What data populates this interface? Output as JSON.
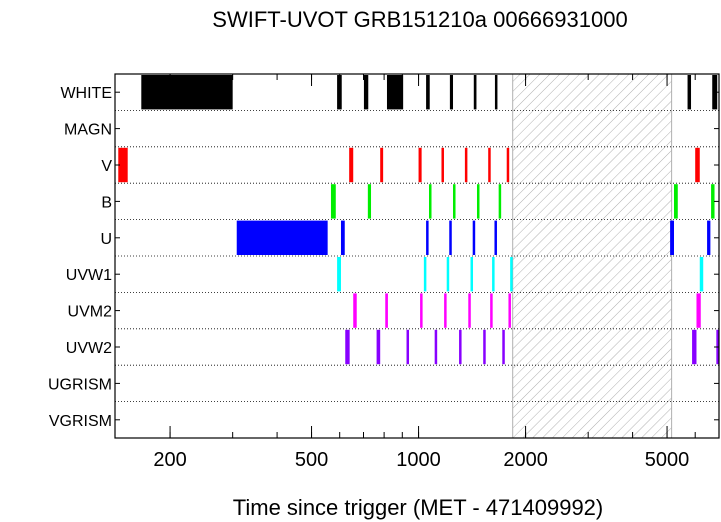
{
  "chart_data": {
    "type": "timeline",
    "title": "SWIFT-UVOT GRB151210a 00666931000",
    "xlabel": "Time since trigger (MET - 471409992)",
    "xscale": "log",
    "xlim": [
      140,
      7000
    ],
    "xticks": [
      {
        "value": 200,
        "label": "200"
      },
      {
        "value": 500,
        "label": "500"
      },
      {
        "value": 1000,
        "label": "1000"
      },
      {
        "value": 2000,
        "label": "2000"
      },
      {
        "value": 5000,
        "label": "5000"
      }
    ],
    "gap": {
      "start": 1840,
      "end": 5150
    },
    "filters": [
      {
        "name": "WHITE",
        "color": "#000000",
        "exposures": [
          [
            166,
            300
          ],
          [
            590,
            608
          ],
          [
            702,
            722
          ],
          [
            815,
            905
          ],
          [
            1050,
            1075
          ],
          [
            1225,
            1250
          ],
          [
            1430,
            1455
          ],
          [
            1640,
            1665
          ],
          [
            5710,
            5840
          ],
          [
            6700,
            6920
          ]
        ]
      },
      {
        "name": "MAGN",
        "color": "#000000",
        "exposures": []
      },
      {
        "name": "V",
        "color": "#ff0000",
        "exposures": [
          [
            143,
            152
          ],
          [
            638,
            655
          ],
          [
            780,
            795
          ],
          [
            1000,
            1020
          ],
          [
            1160,
            1175
          ],
          [
            1350,
            1365
          ],
          [
            1570,
            1585
          ],
          [
            1770,
            1790
          ],
          [
            6000,
            6180
          ]
        ]
      },
      {
        "name": "B",
        "color": "#00ee00",
        "exposures": [
          [
            567,
            585
          ],
          [
            720,
            735
          ],
          [
            1070,
            1085
          ],
          [
            1250,
            1265
          ],
          [
            1460,
            1475
          ],
          [
            1680,
            1695
          ],
          [
            5230,
            5360
          ],
          [
            6650,
            6800
          ]
        ]
      },
      {
        "name": "U",
        "color": "#0000ff",
        "exposures": [
          [
            308,
            555
          ],
          [
            605,
            620
          ],
          [
            1050,
            1065
          ],
          [
            1220,
            1235
          ],
          [
            1420,
            1435
          ],
          [
            1635,
            1650
          ],
          [
            5100,
            5230
          ],
          [
            6480,
            6620
          ]
        ]
      },
      {
        "name": "UVW1",
        "color": "#00ffff",
        "exposures": [
          [
            590,
            605
          ],
          [
            1035,
            1050
          ],
          [
            1200,
            1215
          ],
          [
            1400,
            1415
          ],
          [
            1610,
            1625
          ],
          [
            1810,
            1830
          ],
          [
            6180,
            6320
          ]
        ]
      },
      {
        "name": "UVM2",
        "color": "#ff00ff",
        "exposures": [
          [
            655,
            670
          ],
          [
            806,
            820
          ],
          [
            1010,
            1025
          ],
          [
            1180,
            1195
          ],
          [
            1380,
            1395
          ],
          [
            1590,
            1605
          ],
          [
            1790,
            1810
          ],
          [
            6050,
            6220
          ]
        ]
      },
      {
        "name": "UVW2",
        "color": "#8800ff",
        "exposures": [
          [
            622,
            640
          ],
          [
            762,
            780
          ],
          [
            925,
            940
          ],
          [
            1110,
            1125
          ],
          [
            1300,
            1315
          ],
          [
            1520,
            1535
          ],
          [
            1720,
            1740
          ],
          [
            5880,
            6050
          ],
          [
            6880,
            7000
          ]
        ]
      },
      {
        "name": "UGRISM",
        "color": "#000000",
        "exposures": []
      },
      {
        "name": "VGRISM",
        "color": "#000000",
        "exposures": []
      }
    ]
  }
}
